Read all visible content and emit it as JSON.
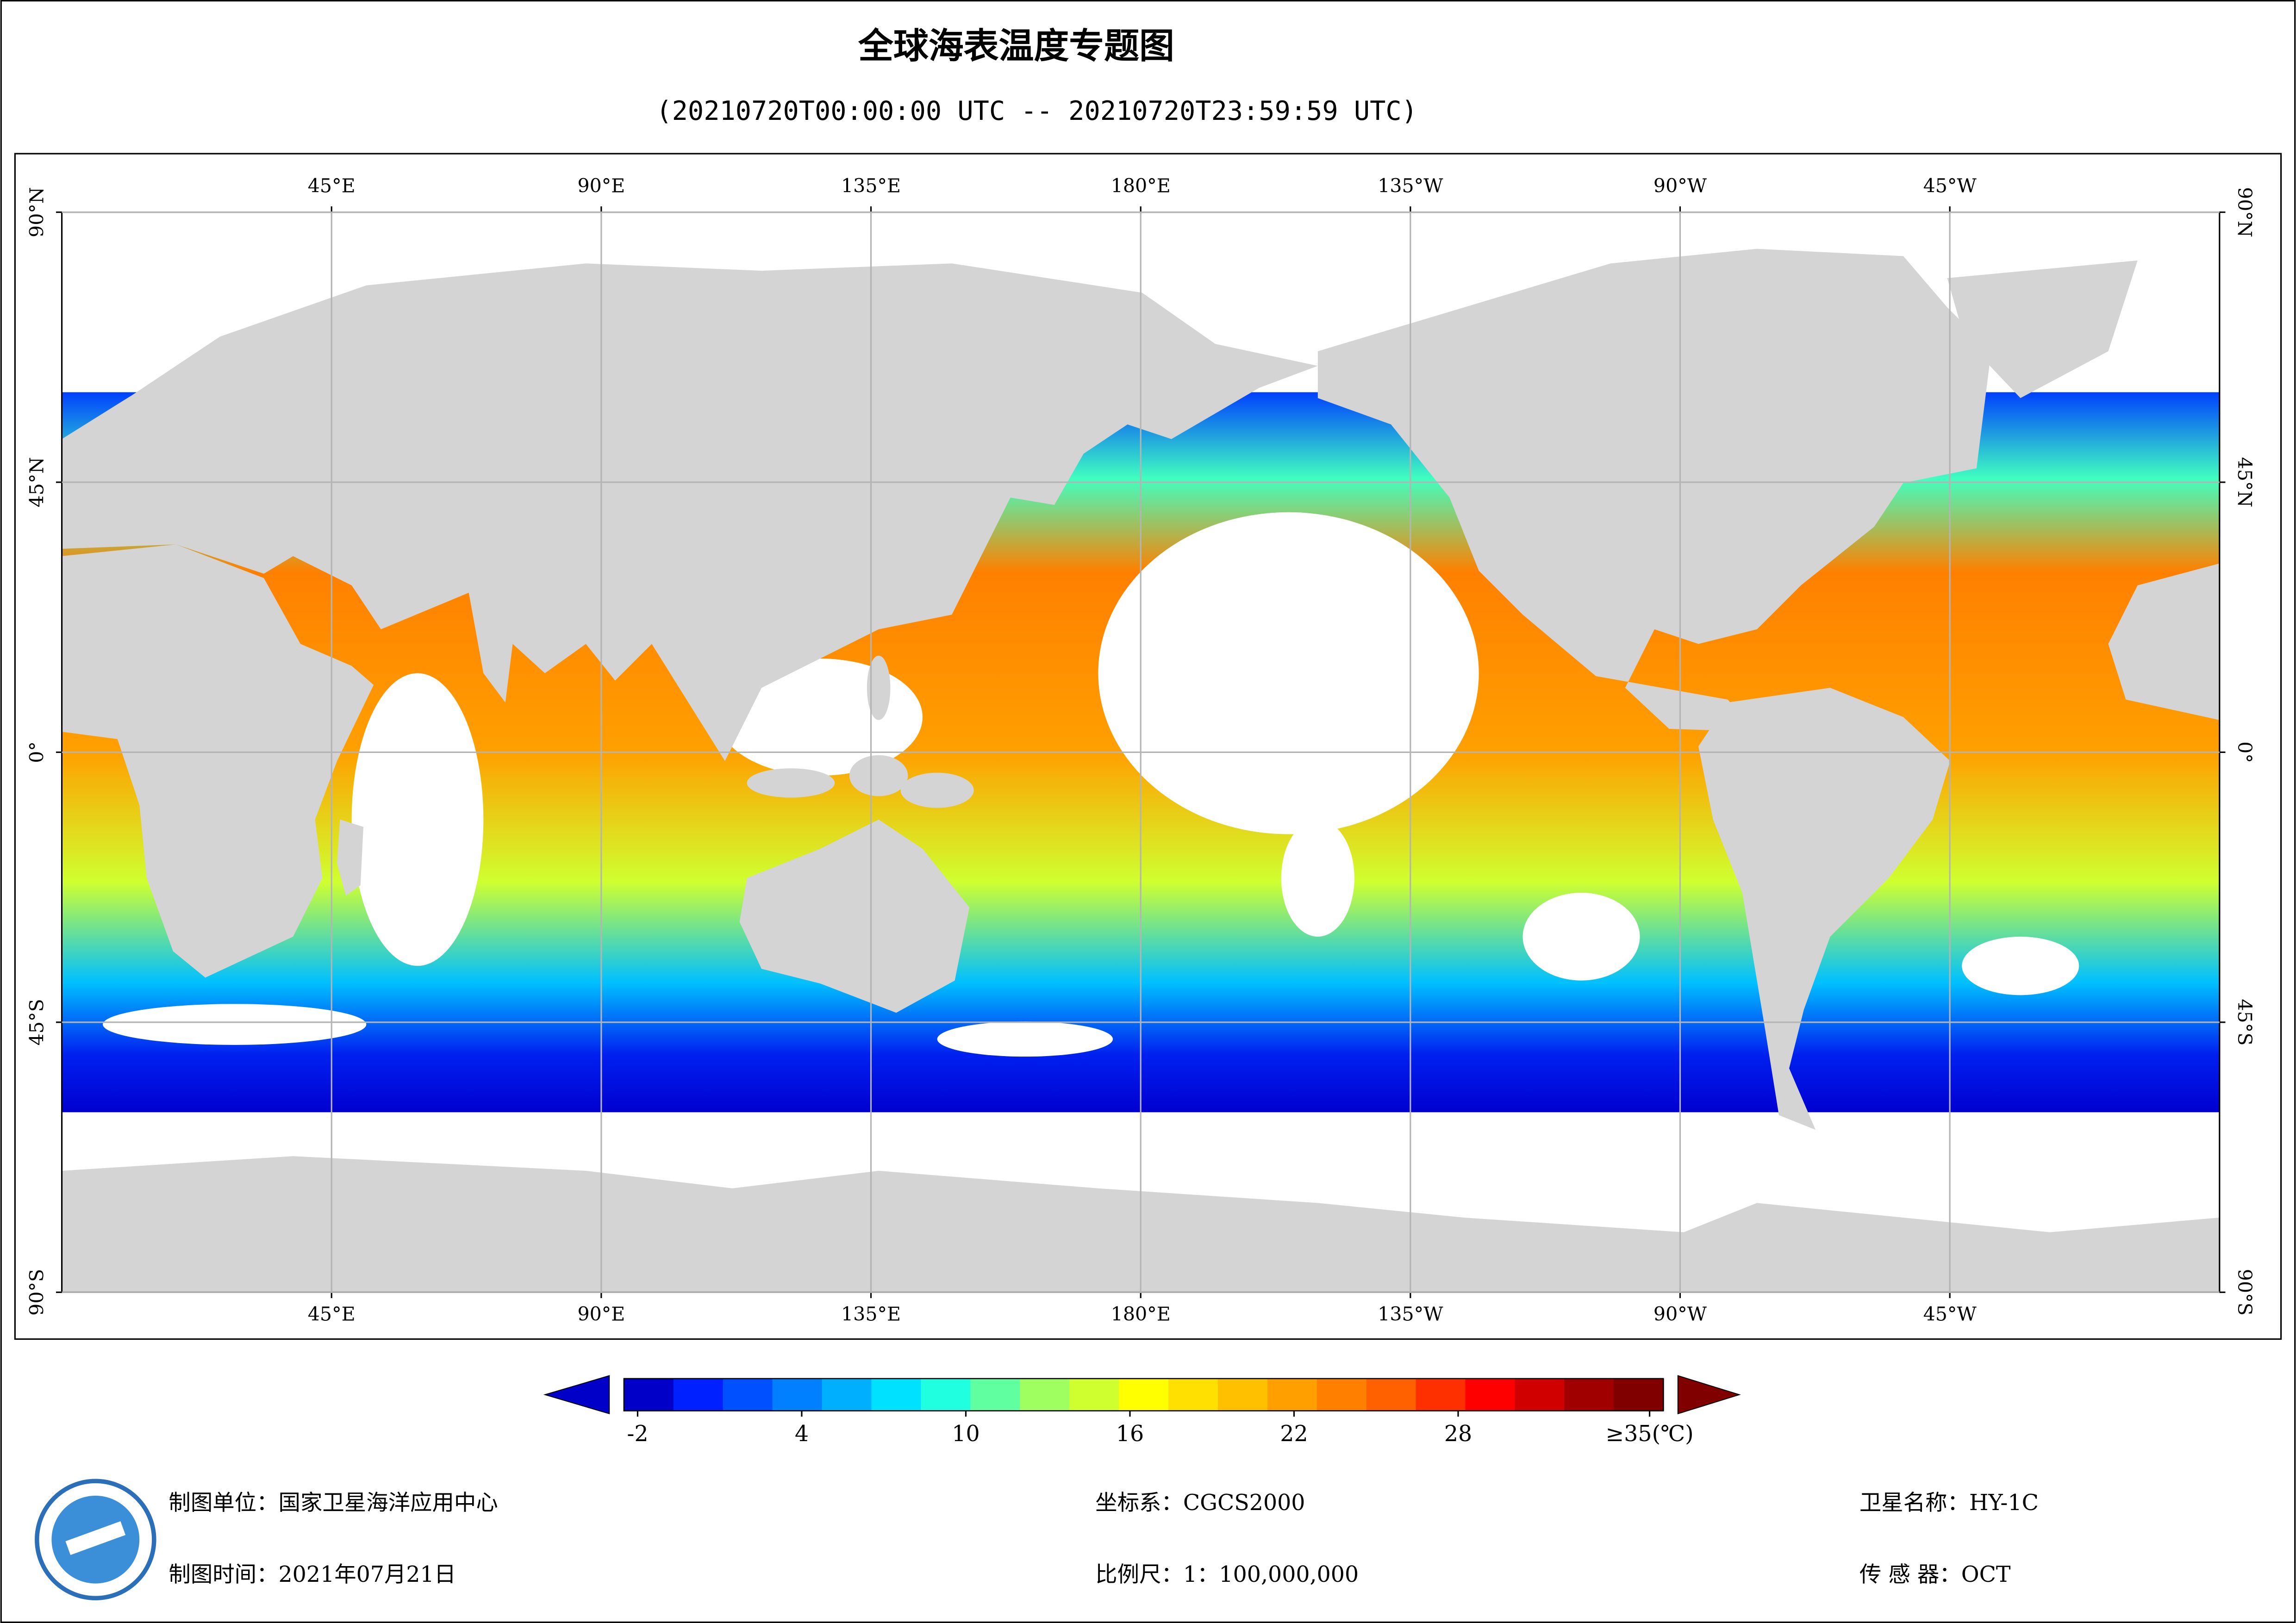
{
  "title": "全球海表温度专题图",
  "subtitle": "(20210720T00:00:00 UTC -- 20210720T23:59:59 UTC)",
  "map": {
    "xlim": [
      0,
      360
    ],
    "ylim": [
      -90,
      90
    ],
    "grid": true,
    "lon_ticks": [
      {
        "value": 45,
        "label": "45°E"
      },
      {
        "value": 90,
        "label": "90°E"
      },
      {
        "value": 135,
        "label": "135°E"
      },
      {
        "value": 180,
        "label": "180°E"
      },
      {
        "value": 225,
        "label": "135°W"
      },
      {
        "value": 270,
        "label": "90°W"
      },
      {
        "value": 315,
        "label": "45°W"
      }
    ],
    "lat_ticks": [
      {
        "value": 90,
        "label": "90°N"
      },
      {
        "value": 45,
        "label": "45°N"
      },
      {
        "value": 0,
        "label": "0°"
      },
      {
        "value": -45,
        "label": "45°S"
      },
      {
        "value": -90,
        "label": "90°S"
      }
    ]
  },
  "colorbar": {
    "limits": [
      -2.5,
      35.5
    ],
    "ticks": [
      -2,
      4,
      10,
      16,
      22,
      28,
      {
        "value": 35,
        "label": "≥35(℃)"
      }
    ],
    "colormap": [
      "#0000c8",
      "#0020ff",
      "#0050ff",
      "#0080ff",
      "#00b0ff",
      "#00e0ff",
      "#20ffe0",
      "#60ffa0",
      "#a0ff60",
      "#d0ff30",
      "#ffff00",
      "#ffe000",
      "#ffc000",
      "#ffa000",
      "#ff8000",
      "#ff6000",
      "#ff3000",
      "#ff0000",
      "#d00000",
      "#a00000",
      "#800000"
    ]
  },
  "footer": {
    "unit": "制图单位：国家卫星海洋应用中心",
    "time": "制图时间：2021年07月21日",
    "crs": "坐标系：CGCS2000",
    "scale": "比例尺：1：100,000,000",
    "satellite": "卫星名称：HY-1C",
    "sensor": "传 感 器：OCT"
  }
}
